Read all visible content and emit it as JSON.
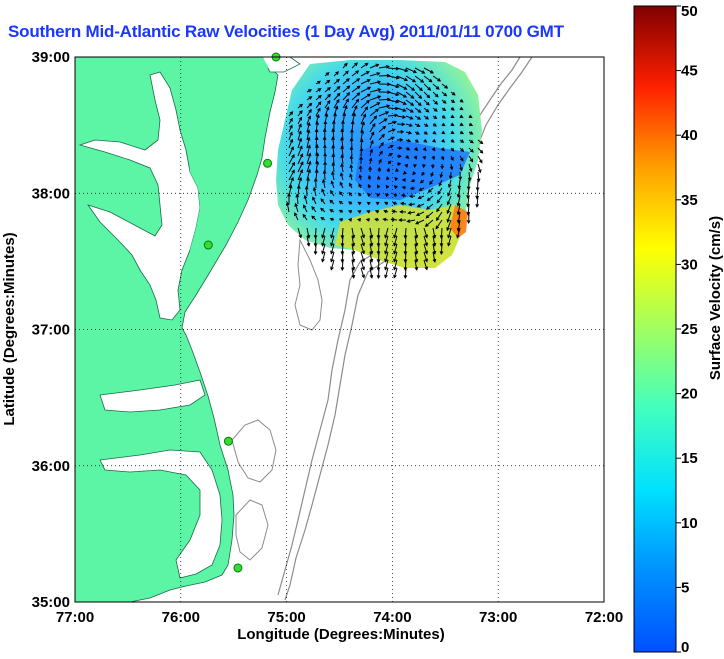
{
  "title": "Southern Mid-Atlantic Raw Velocities (1 Day Avg) 2011/01/11 0700 GMT",
  "axes": {
    "xlabel": "Longitude (Degrees:Minutes)",
    "ylabel": "Latitude (Degrees:Minutes)",
    "x_ticks": [
      "77:00",
      "76:00",
      "75:00",
      "74:00",
      "73:00",
      "72:00"
    ],
    "y_ticks": [
      "39:00",
      "38:00",
      "37:00",
      "36:00",
      "35:00"
    ],
    "x_range": [
      -77,
      -72
    ],
    "y_range": [
      35,
      39
    ],
    "grid": "dotted"
  },
  "colorbar": {
    "label": "Surface Velocity (cm/s)",
    "range": [
      0,
      50
    ],
    "ticks": [
      "0",
      "5",
      "10",
      "15",
      "20",
      "25",
      "30",
      "35",
      "40",
      "45",
      "50"
    ],
    "colormap": "jet"
  },
  "colors": {
    "land": "#5cf5a5",
    "ocean": "#ffffff",
    "title": "#1a37ff",
    "bathymetry": "#8c8c8c",
    "stations": "#33dd33"
  },
  "stations": [
    {
      "lon": -75.1,
      "lat": 39.0
    },
    {
      "lon": -75.18,
      "lat": 38.22
    },
    {
      "lon": -75.74,
      "lat": 37.62
    },
    {
      "lon": -75.55,
      "lat": 36.18
    },
    {
      "lon": -75.46,
      "lat": 35.25
    }
  ]
}
